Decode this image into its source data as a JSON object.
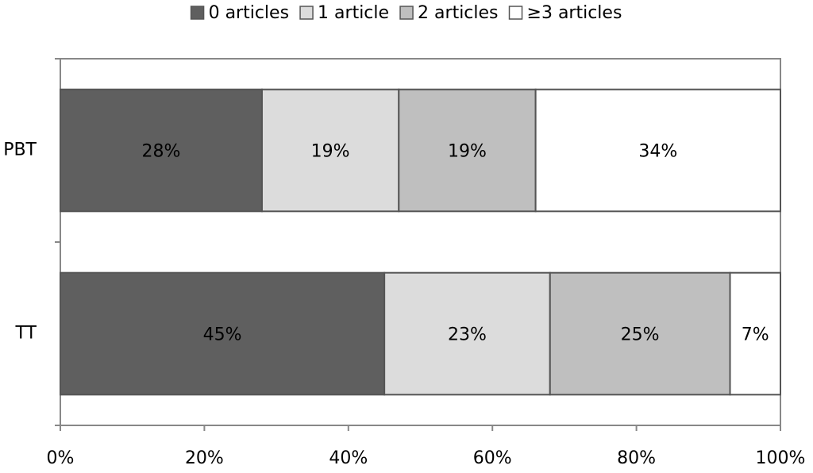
{
  "chart_data": {
    "type": "stacked-bar-horizontal",
    "categories": [
      "PBT",
      "TT"
    ],
    "series": [
      {
        "name": "0 articles",
        "color": "#5f5f5f",
        "values": [
          28,
          45
        ],
        "value_labels": [
          "28%",
          "45%"
        ]
      },
      {
        "name": "1 article",
        "color": "#dcdcdc",
        "values": [
          19,
          23
        ],
        "value_labels": [
          "19%",
          "23%"
        ]
      },
      {
        "name": "2 articles",
        "color": "#bfbfbf",
        "values": [
          19,
          25
        ],
        "value_labels": [
          "19%",
          "25%"
        ]
      },
      {
        "name": "≥3 articles",
        "color": "#ffffff",
        "values": [
          34,
          7
        ],
        "value_labels": [
          "34%",
          "7%"
        ]
      }
    ],
    "xlim": [
      0,
      100
    ],
    "xticks": [
      {
        "value": 0,
        "label": "0%"
      },
      {
        "value": 20,
        "label": "20%"
      },
      {
        "value": 40,
        "label": "40%"
      },
      {
        "value": 60,
        "label": "60%"
      },
      {
        "value": 80,
        "label": "80%"
      },
      {
        "value": 100,
        "label": "100%"
      }
    ],
    "legend": "top"
  }
}
